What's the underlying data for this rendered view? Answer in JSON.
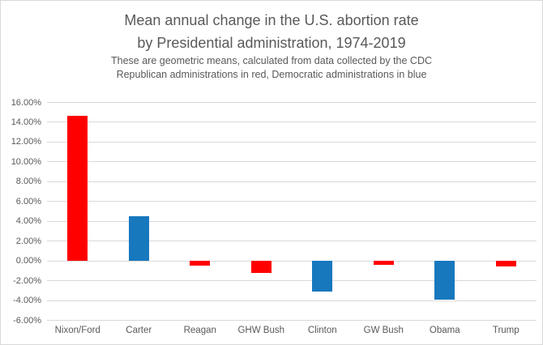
{
  "chart_data": {
    "type": "bar",
    "title_lines": [
      "Mean annual change in the U.S. abortion rate",
      "by Presidential administration, 1974-2019"
    ],
    "subtitle_lines": [
      "These are geometric means, calculated from data collected by the CDC",
      "Republican administrations in red, Democratic administrations in blue"
    ],
    "title": "Mean annual change in the U.S. abortion rate by Presidential administration, 1974-2019",
    "subtitle": "These are geometric means, calculated from data collected by the CDC. Republican administrations in red, Democratic administrations in blue",
    "categories": [
      "Nixon/Ford",
      "Carter",
      "Reagan",
      "GHW Bush",
      "Clinton",
      "GW Bush",
      "Obama",
      "Trump"
    ],
    "values": [
      14.6,
      4.5,
      -0.5,
      -1.2,
      -3.1,
      -0.4,
      -3.9,
      -0.6
    ],
    "parties": [
      "R",
      "D",
      "R",
      "R",
      "D",
      "R",
      "D",
      "R"
    ],
    "unit": "%",
    "xlabel": "",
    "ylabel": "",
    "ylim": [
      -6,
      16
    ],
    "ytick_step": 2,
    "yticks": [
      {
        "value": 16,
        "label": "16.00%"
      },
      {
        "value": 14,
        "label": "14.00%"
      },
      {
        "value": 12,
        "label": "12.00%"
      },
      {
        "value": 10,
        "label": "10.00%"
      },
      {
        "value": 8,
        "label": "8.00%"
      },
      {
        "value": 6,
        "label": "6.00%"
      },
      {
        "value": 4,
        "label": "4.00%"
      },
      {
        "value": 2,
        "label": "2.00%"
      },
      {
        "value": 0,
        "label": "0.00%"
      },
      {
        "value": -2,
        "label": "-2.00%"
      },
      {
        "value": -4,
        "label": "-4.00%"
      },
      {
        "value": -6,
        "label": "-6.00%"
      }
    ],
    "grid": "horizontal",
    "legend_position": "none",
    "colors": {
      "republican": "#ff0000",
      "democrat": "#1778be",
      "gridline": "#d9d9d9",
      "title_text": "#595959",
      "axis_text": "#595959",
      "background": "#ffffff",
      "border": "#d9d9d9"
    }
  }
}
